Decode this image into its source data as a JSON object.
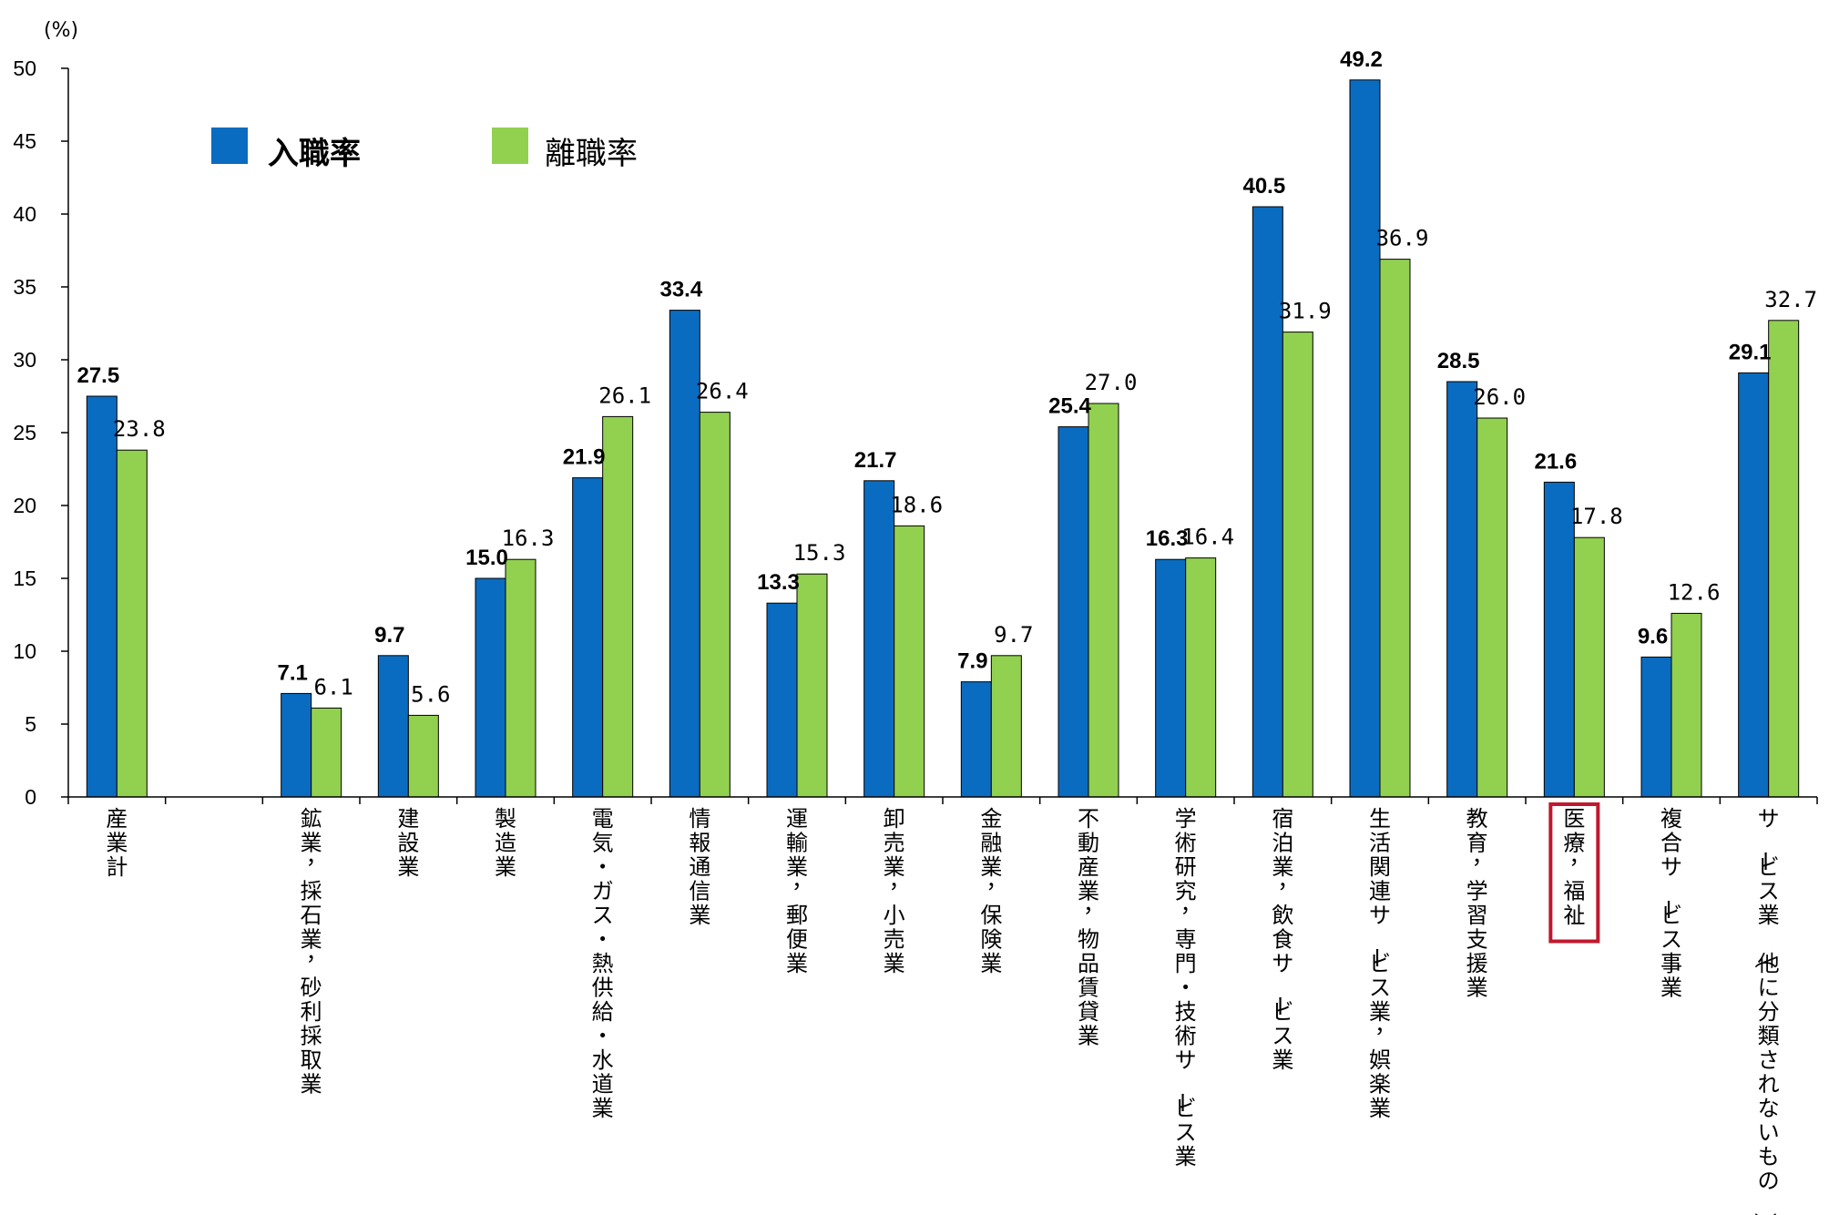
{
  "chart_data": {
    "type": "bar",
    "unit_label": "(%)",
    "ylim": [
      0,
      50
    ],
    "yticks": [
      0,
      5,
      10,
      15,
      20,
      25,
      30,
      35,
      40,
      45,
      50
    ],
    "legend_position": "top-left",
    "grid": false,
    "highlighted_category": "医療，福祉",
    "highlight_color": "#c0182e",
    "categories": [
      "産業計",
      "鉱業，採石業，砂利採取業",
      "建設業",
      "製造業",
      "電気・ガス・熱供給・水道業",
      "情報通信業",
      "運輸業，郵便業",
      "卸売業，小売業",
      "金融業，保険業",
      "不動産業，物品賃貸業",
      "学術研究，専門・技術サービス業",
      "宿泊業，飲食サービス業",
      "生活関連サービス業，娯楽業",
      "教育，学習支援業",
      "医療，福祉",
      "複合サービス事業",
      "サービス業（他に分類されないもの）"
    ],
    "series": [
      {
        "name": "入職率",
        "color": "#0a6cc0",
        "values": [
          27.5,
          7.1,
          9.7,
          15.0,
          21.9,
          33.4,
          13.3,
          21.7,
          7.9,
          25.4,
          16.3,
          40.5,
          49.2,
          28.5,
          21.6,
          9.6,
          29.1
        ],
        "labels": [
          "27.5",
          "7.1",
          "9.7",
          "15.0",
          "21.9",
          "33.4",
          "13.3",
          "21.7",
          "7.9",
          "25.4",
          "16.3",
          "40.5",
          "49.2",
          "28.5",
          "21.6",
          "9.6",
          "29.1"
        ]
      },
      {
        "name": "離職率",
        "color": "#92d050",
        "values": [
          23.8,
          6.1,
          5.6,
          16.3,
          26.1,
          26.4,
          15.3,
          18.6,
          9.7,
          27.0,
          16.4,
          31.9,
          36.9,
          26.0,
          17.8,
          12.6,
          32.7
        ],
        "labels": [
          "23.8",
          "6.1",
          "5.6",
          "16.3",
          "26.1",
          "26.4",
          "15.3",
          "18.6",
          "9.7",
          "27.0",
          "16.4",
          "31.9",
          "36.9",
          "26.0",
          "17.8",
          "12.6",
          "32.7"
        ]
      }
    ]
  }
}
